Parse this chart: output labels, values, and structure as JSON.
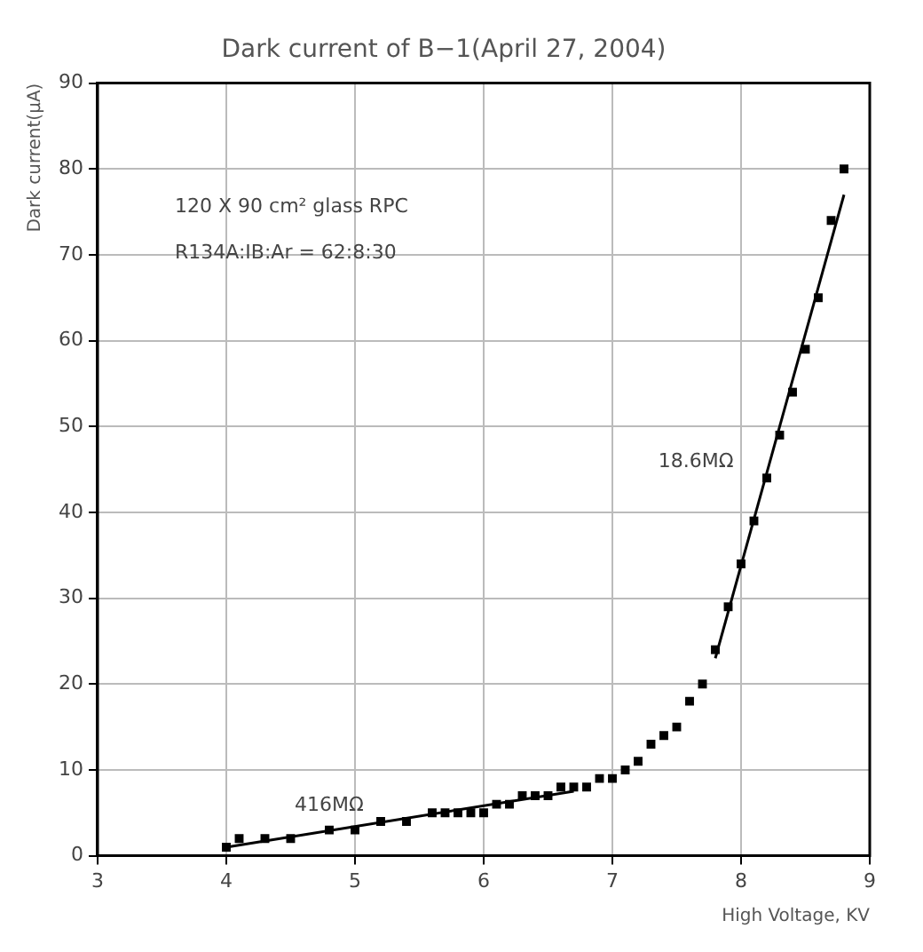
{
  "chart_data": {
    "type": "scatter",
    "title": "Dark current of B−1(April 27, 2004)",
    "xlabel": "High Voltage, KV",
    "ylabel": "Dark current(μA)",
    "xlim": [
      3,
      9
    ],
    "xticks": [
      3,
      4,
      5,
      6,
      7,
      8,
      9
    ],
    "ylim": [
      0,
      90
    ],
    "yticks": [
      0,
      10,
      20,
      30,
      40,
      50,
      60,
      70,
      80,
      90
    ],
    "grid": true,
    "legend": false,
    "marker": "square",
    "annotations": [
      "120 X 90 cm² glass RPC",
      "R134A:IB:Ar = 62:8:30",
      "416MΩ",
      "18.6MΩ"
    ],
    "series": [
      {
        "type": "scatter",
        "color": "#000000",
        "x": [
          4,
          4.1,
          4.3,
          4.5,
          4.8,
          5,
          5.2,
          5.4,
          5.6,
          5.7,
          5.8,
          5.9,
          6,
          6.1,
          6.2,
          6.3,
          6.4,
          6.5,
          6.6,
          6.7,
          6.8,
          6.9,
          7,
          7.1,
          7.2,
          7.3,
          7.4,
          7.5,
          7.6,
          7.7,
          7.8,
          7.9,
          8,
          8.1,
          8.2,
          8.3,
          8.4,
          8.5,
          8.6,
          8.7,
          8.8
        ],
        "values": [
          1,
          2,
          2,
          2,
          3,
          3,
          4,
          4,
          5,
          5,
          5,
          5,
          5,
          6,
          6,
          7,
          7,
          7,
          8,
          8,
          8,
          9,
          9,
          10,
          11,
          13,
          14,
          15,
          18,
          20,
          24,
          29,
          34,
          39,
          44,
          49,
          54,
          59,
          65,
          74,
          80
        ]
      },
      {
        "type": "line",
        "color": "#000000",
        "marker": "none",
        "x": [
          4,
          6.7
        ],
        "values": [
          1,
          7.5
        ]
      },
      {
        "type": "line",
        "color": "#000000",
        "marker": "none",
        "x": [
          7.8,
          8.8
        ],
        "values": [
          23,
          77
        ]
      }
    ]
  }
}
